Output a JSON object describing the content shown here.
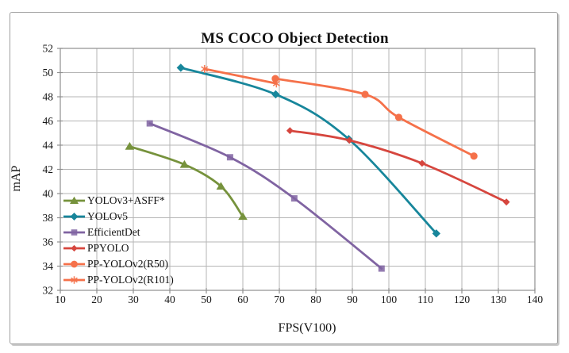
{
  "chart_data": {
    "type": "line",
    "title": "MS COCO Object Detection",
    "xlabel": "FPS(V100)",
    "ylabel": "mAP",
    "xlim": [
      10,
      140
    ],
    "ylim": [
      32,
      52
    ],
    "x_ticks": [
      10,
      20,
      30,
      40,
      50,
      60,
      70,
      80,
      90,
      100,
      110,
      120,
      130,
      140
    ],
    "y_ticks": [
      32,
      34,
      36,
      38,
      40,
      42,
      44,
      46,
      48,
      50,
      52
    ],
    "grid": true,
    "legend_position": "inside-bottom-left",
    "series": [
      {
        "name": "YOLOv3+ASFF*",
        "color": "#76923C",
        "marker": "triangle",
        "points": [
          [
            29,
            43.9
          ],
          [
            44,
            42.4
          ],
          [
            54,
            40.6
          ],
          [
            60,
            38.1
          ]
        ]
      },
      {
        "name": "YOLOv5",
        "color": "#17869B",
        "marker": "diamond",
        "points": [
          [
            43,
            50.4
          ],
          [
            69,
            48.2
          ],
          [
            89,
            44.5
          ],
          [
            113,
            36.7
          ]
        ]
      },
      {
        "name": "EfficientDet",
        "color": "#8064A2",
        "marker": "square",
        "points": [
          [
            34.5,
            45.8
          ],
          [
            56.5,
            43.0
          ],
          [
            74.1,
            39.6
          ],
          [
            98,
            33.8
          ]
        ]
      },
      {
        "name": "PPYOLO",
        "color": "#D6463E",
        "marker": "diamond-small",
        "points": [
          [
            72.9,
            45.2
          ],
          [
            89.2,
            44.4
          ],
          [
            109.1,
            42.5
          ],
          [
            132.2,
            39.3
          ]
        ]
      },
      {
        "name": "PP-YOLOv2(R50)",
        "color": "#F5714A",
        "marker": "circle",
        "points": [
          [
            68.9,
            49.5
          ],
          [
            93.5,
            48.2
          ],
          [
            102.7,
            46.3
          ],
          [
            123.3,
            43.1
          ]
        ]
      },
      {
        "name": "PP-YOLOv2(R101)",
        "color": "#F5714A",
        "marker": "asterisk",
        "points": [
          [
            49.5,
            50.3
          ],
          [
            69.2,
            49.1
          ]
        ]
      }
    ],
    "colors": {
      "grid": "#b5b5b5",
      "plot_border": "#8f8f8f",
      "frame_border": "#a0a0a0",
      "text": "#161616"
    }
  }
}
